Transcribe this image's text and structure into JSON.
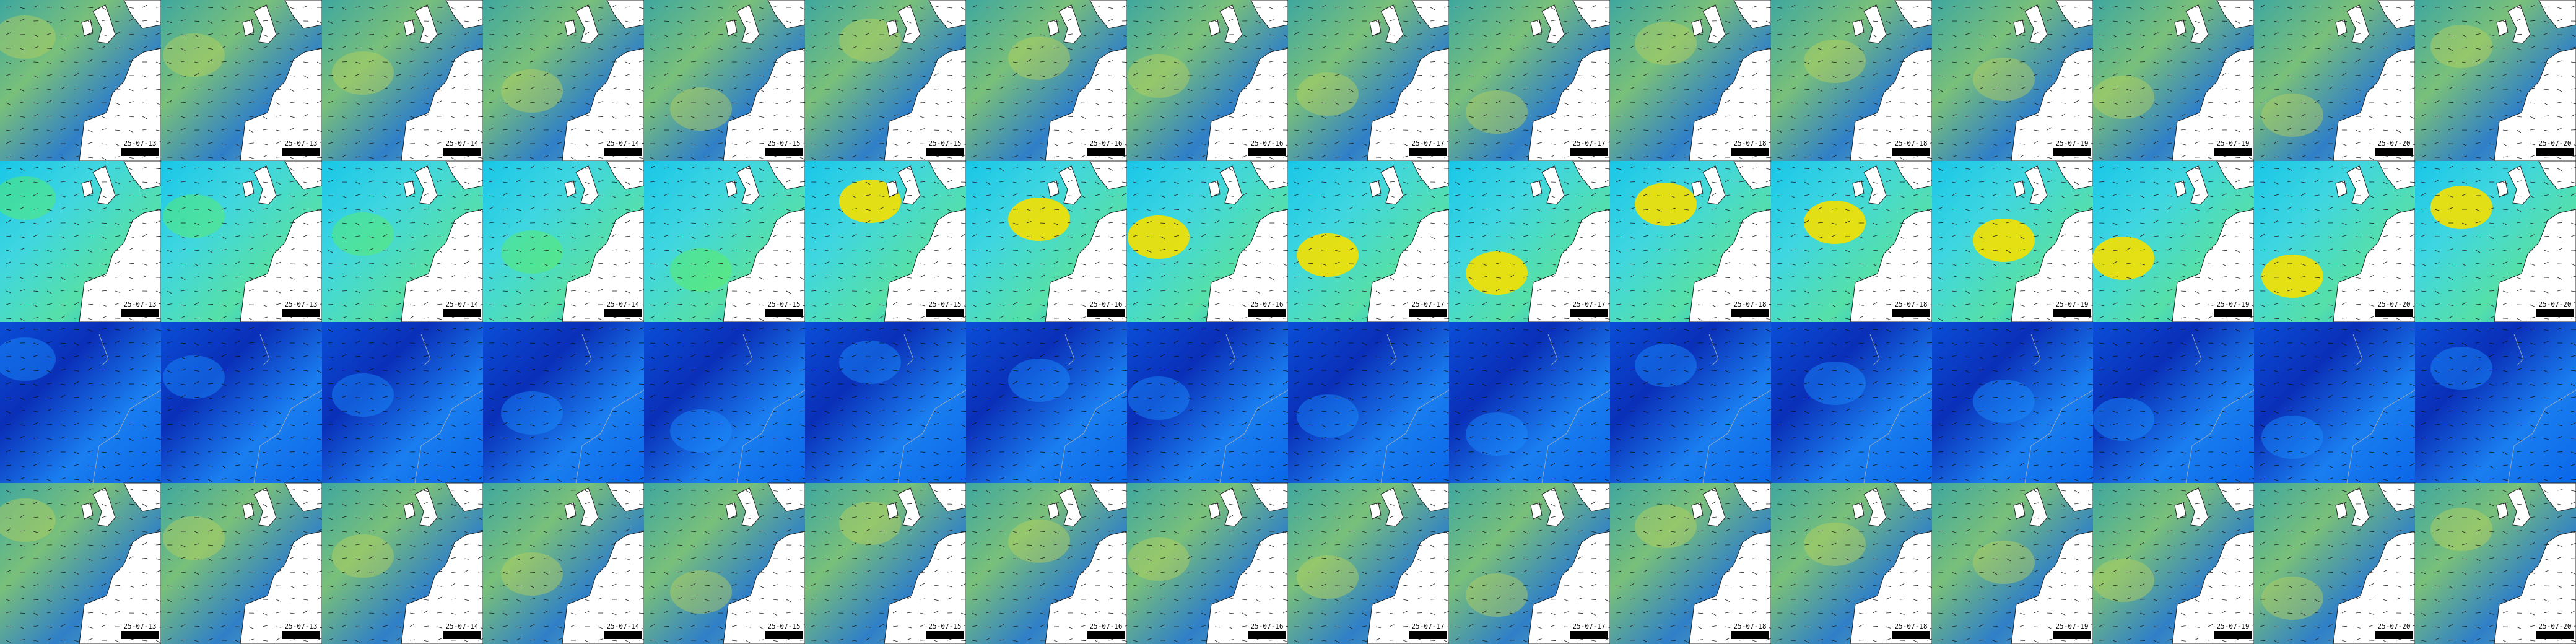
{
  "rows": [
    {
      "tiles": [
        "25-07-13",
        "25-07-13",
        "25-07-14",
        "25-07-14",
        "25-07-15",
        "25-07-15",
        "25-07-16",
        "25-07-16",
        "25-07-17",
        "25-07-17",
        "25-07-18",
        "25-07-18",
        "25-07-19",
        "25-07-19",
        "25-07-20",
        "25-07-20"
      ]
    },
    {
      "tiles": [
        "25-07-13",
        "25-07-13",
        "25-07-14",
        "25-07-14",
        "25-07-15",
        "25-07-15",
        "25-07-16",
        "25-07-16",
        "25-07-17",
        "25-07-17",
        "25-07-18",
        "25-07-18",
        "25-07-19",
        "25-07-19",
        "25-07-20",
        "25-07-20"
      ]
    },
    {
      "tiles": []
    },
    {
      "tiles": [
        "25-07-13",
        "25-07-13",
        "25-07-14",
        "25-07-14",
        "25-07-15",
        "25-07-15",
        "25-07-16",
        "25-07-16",
        "25-07-17",
        "25-07-17",
        "25-07-18",
        "25-07-18",
        "25-07-19",
        "25-07-19",
        "25-07-20",
        "25-07-20"
      ]
    }
  ]
}
